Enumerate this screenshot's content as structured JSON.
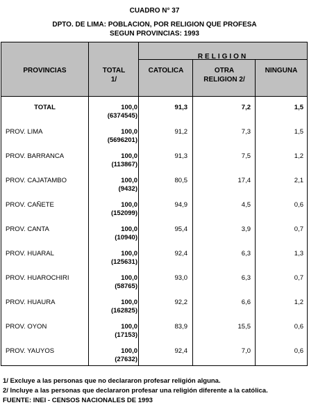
{
  "header": {
    "cuadro": "CUADRO N° 37",
    "title_line1": "DPTO. DE LIMA: POBLACION, POR RELIGION QUE PROFESA",
    "title_line2": "SEGUN PROVINCIAS: 1993"
  },
  "columns": {
    "provincias": "PROVINCIAS",
    "total_line1": "TOTAL",
    "total_line2": "1/",
    "religion": "RELIGION",
    "catolica": "CATOLICA",
    "otra_line1": "OTRA",
    "otra_line2": "RELIGION 2/",
    "ninguna": "NINGUNA"
  },
  "rows": [
    {
      "name": "TOTAL",
      "pct": "100,0",
      "pop": "(6374545)",
      "catolica": "91,3",
      "otra": "7,2",
      "ninguna": "1,5"
    },
    {
      "name": "PROV. LIMA",
      "pct": "100,0",
      "pop": "(5696201)",
      "catolica": "91,2",
      "otra": "7,3",
      "ninguna": "1,5"
    },
    {
      "name": "PROV. BARRANCA",
      "pct": "100,0",
      "pop": "(113867)",
      "catolica": "91,3",
      "otra": "7,5",
      "ninguna": "1,2"
    },
    {
      "name": "PROV. CAJATAMBO",
      "pct": "100,0",
      "pop": "(9432)",
      "catolica": "80,5",
      "otra": "17,4",
      "ninguna": "2,1"
    },
    {
      "name": "PROV. CAÑETE",
      "pct": "100,0",
      "pop": "(152099)",
      "catolica": "94,9",
      "otra": "4,5",
      "ninguna": "0,6"
    },
    {
      "name": "PROV. CANTA",
      "pct": "100,0",
      "pop": "(10940)",
      "catolica": "95,4",
      "otra": "3,9",
      "ninguna": "0,7"
    },
    {
      "name": "PROV. HUARAL",
      "pct": "100,0",
      "pop": "(125631)",
      "catolica": "92,4",
      "otra": "6,3",
      "ninguna": "1,3"
    },
    {
      "name": "PROV. HUAROCHIRI",
      "pct": "100,0",
      "pop": "(58765)",
      "catolica": "93,0",
      "otra": "6,3",
      "ninguna": "0,7"
    },
    {
      "name": "PROV. HUAURA",
      "pct": "100,0",
      "pop": "(162825)",
      "catolica": "92,2",
      "otra": "6,6",
      "ninguna": "1,2"
    },
    {
      "name": "PROV. OYON",
      "pct": "100,0",
      "pop": "(17153)",
      "catolica": "83,9",
      "otra": "15,5",
      "ninguna": "0,6"
    },
    {
      "name": "PROV. YAUYOS",
      "pct": "100,0",
      "pop": "(27632)",
      "catolica": "92,4",
      "otra": "7,0",
      "ninguna": "0,6"
    }
  ],
  "notes": {
    "note1": "1/ Excluye a las personas que no declararon profesar religión alguna.",
    "note2": "2/ Incluye a las personas que declararon profesar una religión diferente a la católica.",
    "source": "FUENTE: INEI - CENSOS NACIONALES DE 1993"
  }
}
